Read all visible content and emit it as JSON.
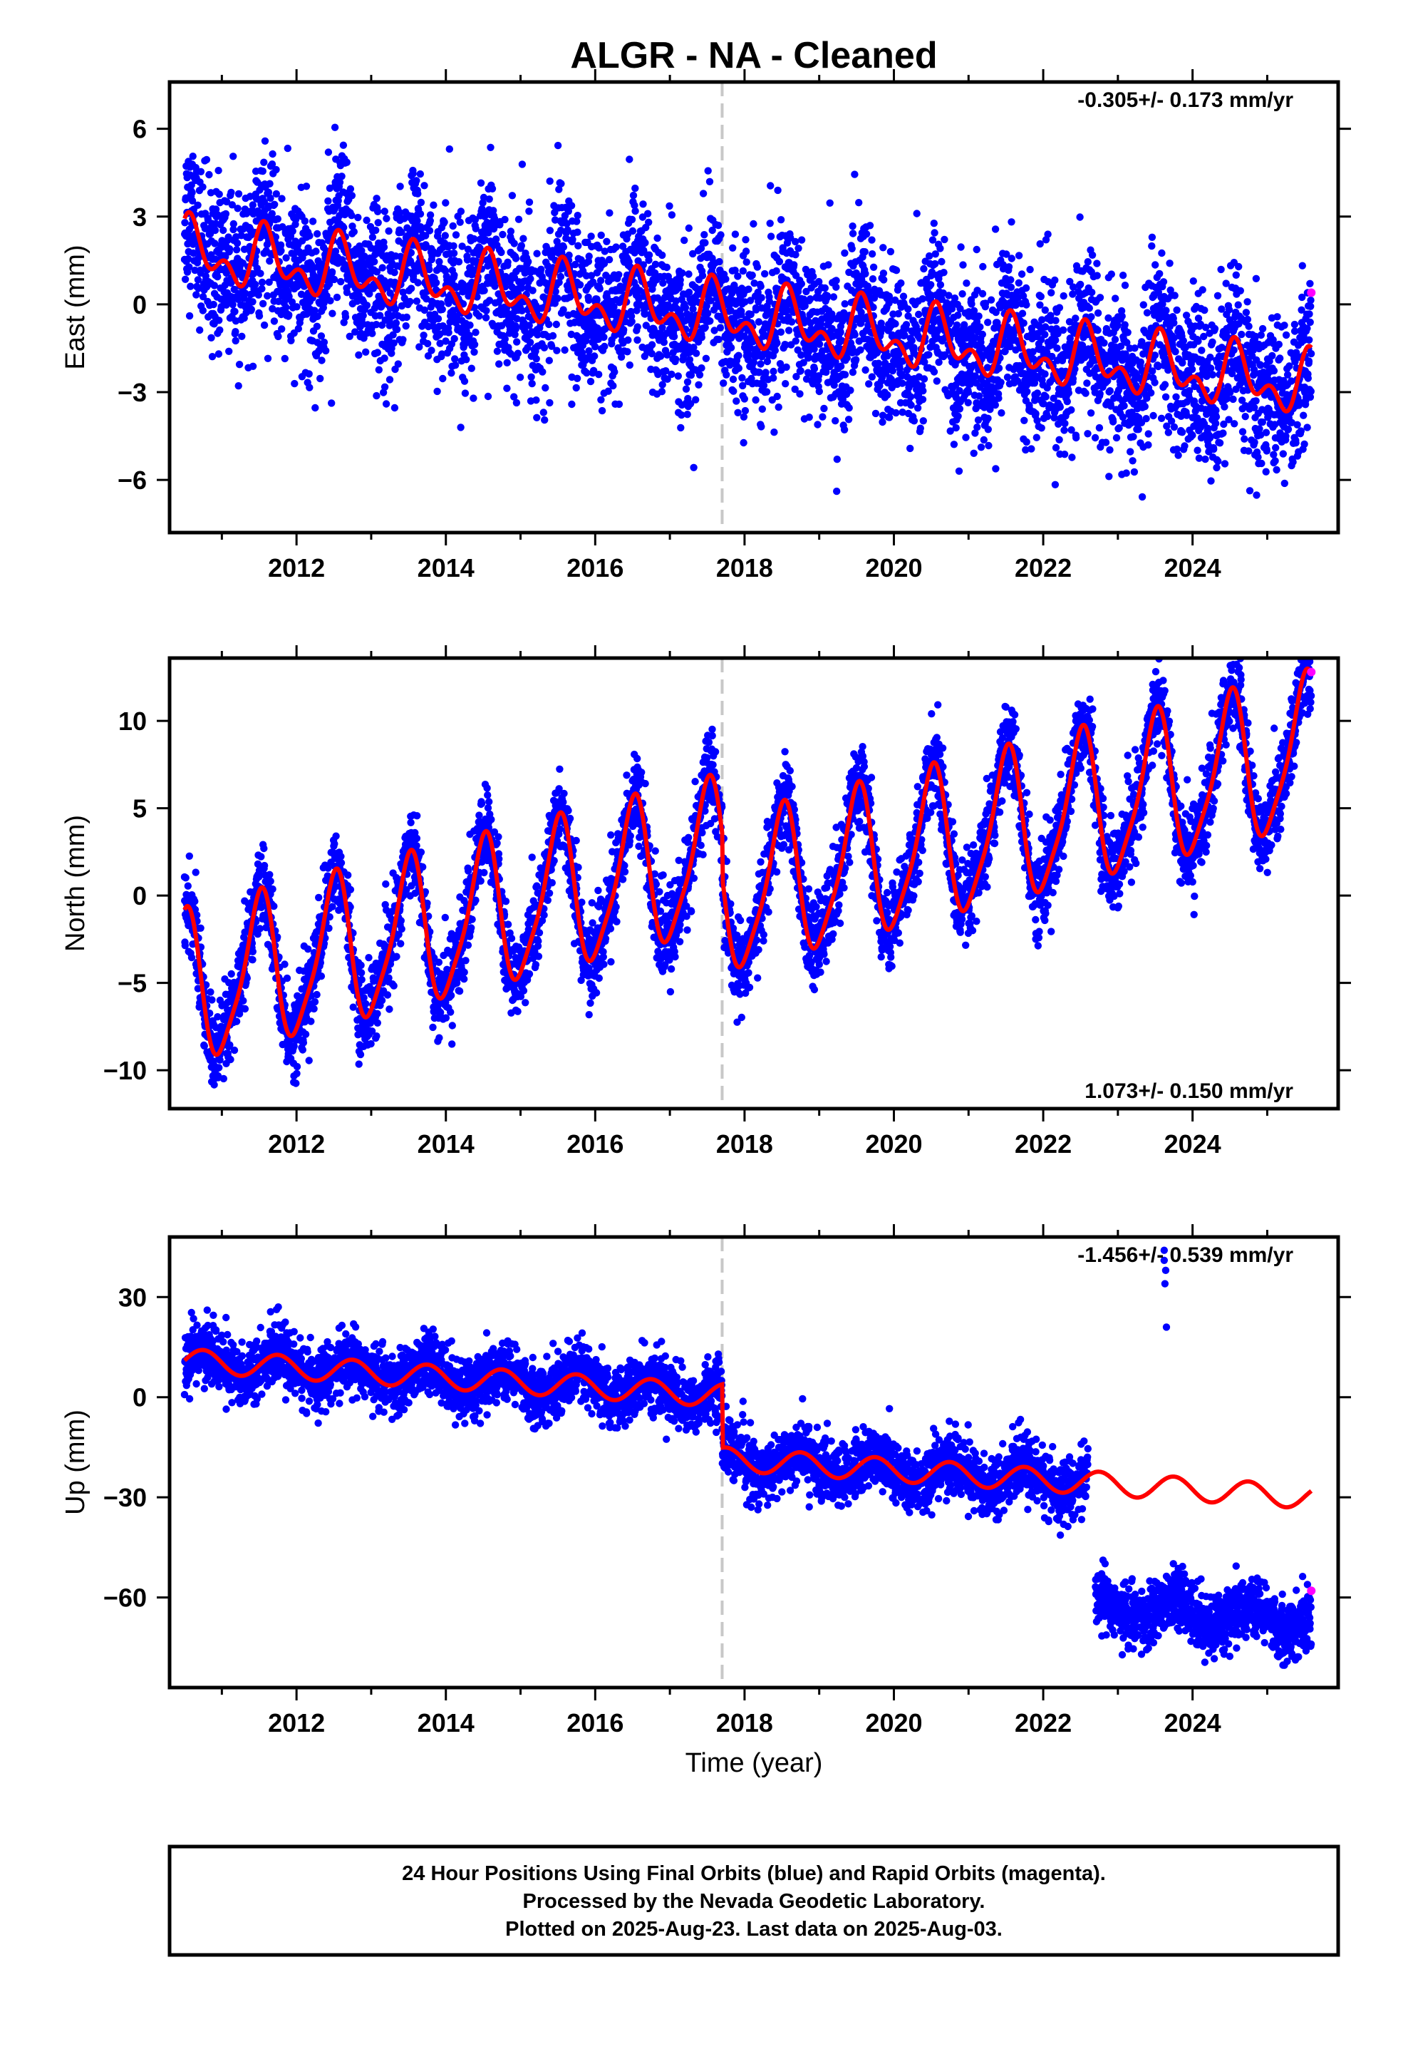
{
  "figure": {
    "title": "ALGR  - NA - Cleaned",
    "xlabel": "Time (year)",
    "footer": [
      "24 Hour Positions Using Final Orbits (blue) and Rapid Orbits (magenta).",
      "Processed by the Nevada Geodetic Laboratory.",
      "Plotted on 2025-Aug-23. Last data on 2025-Aug-03."
    ],
    "colors": {
      "final_orbits": "#0000ff",
      "rapid_orbits": "#ff00ff",
      "model": "#ff0000",
      "offset_line": "#c8c8c8"
    }
  },
  "chart_data": [
    {
      "type": "scatter",
      "component": "East",
      "ylabel": "East (mm)",
      "rate_label": "-0.305+/- 0.173 mm/yr",
      "xlim": [
        2010.3,
        2025.95
      ],
      "ylim": [
        -7.8,
        7.6
      ],
      "xticks": [
        2012,
        2014,
        2016,
        2018,
        2020,
        2022,
        2024
      ],
      "yticks": [
        -6,
        -3,
        0,
        3,
        6
      ],
      "ytick_labels": [
        "−6",
        "−3",
        "0",
        "3",
        "6"
      ],
      "offset_epoch": 2017.7,
      "data_start": 2010.5,
      "data_end": 2025.59,
      "model": {
        "trend_mm_per_yr": -0.305,
        "intercept_mm_at_2010_5": 1.8,
        "annual_amplitude_mm": 0.8,
        "annual_phase_peak": 2010.6,
        "semiannual_amplitude_mm": 0.6,
        "semiannual_phase_peak": 2010.55,
        "step_mm_at_offset": 0.0
      },
      "scatter_sd_mm": 1.35,
      "rapid_orbit_points": [
        {
          "x": 2025.59,
          "y": 0.4
        }
      ]
    },
    {
      "type": "scatter",
      "component": "North",
      "ylabel": "North (mm)",
      "rate_label": "1.073+/- 0.150 mm/yr",
      "xlim": [
        2010.3,
        2025.95
      ],
      "ylim": [
        -12.2,
        13.6
      ],
      "xticks": [
        2012,
        2014,
        2016,
        2018,
        2020,
        2022,
        2024
      ],
      "yticks": [
        -10,
        -5,
        0,
        5,
        10
      ],
      "ytick_labels": [
        "−10",
        "−5",
        "0",
        "5",
        "10"
      ],
      "offset_epoch": 2017.7,
      "data_start": 2010.5,
      "data_end": 2025.59,
      "model": {
        "trend_mm_per_yr": 1.073,
        "intercept_mm_at_2010_5": -5.5,
        "annual_amplitude_mm": 4.2,
        "annual_phase_peak": 2010.5,
        "semiannual_amplitude_mm": 0.9,
        "semiannual_phase_peak": 2010.58,
        "step_mm_at_offset": -2.5
      },
      "scatter_sd_mm": 1.2,
      "rapid_orbit_points": [
        {
          "x": 2025.59,
          "y": 12.8
        }
      ]
    },
    {
      "type": "scatter",
      "component": "Up",
      "ylabel": "Up (mm)",
      "rate_label": "-1.456+/- 0.539 mm/yr",
      "xlim": [
        2010.3,
        2025.95
      ],
      "ylim": [
        -87,
        48
      ],
      "xticks": [
        2012,
        2014,
        2016,
        2018,
        2020,
        2022,
        2024
      ],
      "yticks": [
        -60,
        -30,
        0,
        30
      ],
      "ytick_labels": [
        "−60",
        "−30",
        "0",
        "30"
      ],
      "offset_epoch": 2017.7,
      "data_start": 2010.5,
      "data_end": 2025.59,
      "model": {
        "trend_mm_per_yr": -1.456,
        "intercept_mm_at_2010_5": 11.0,
        "annual_amplitude_mm": 3.5,
        "annual_phase_peak": 2010.75,
        "semiannual_amplitude_mm": 0.0,
        "semiannual_phase_peak": 2010.75,
        "step_mm_at_offset": -19.0
      },
      "scatter_sd_mm": 4.5,
      "data_segments": [
        {
          "start": 2010.5,
          "end": 2022.6,
          "shift_mm": 0
        },
        {
          "start": 2022.7,
          "end": 2025.59,
          "shift_mm": -37
        }
      ],
      "outlier_points": [
        {
          "x": 2023.62,
          "y": 44
        },
        {
          "x": 2023.62,
          "y": 41
        },
        {
          "x": 2023.64,
          "y": 38
        },
        {
          "x": 2023.63,
          "y": 34
        },
        {
          "x": 2023.65,
          "y": 21
        }
      ],
      "rapid_orbit_points": [
        {
          "x": 2025.59,
          "y": -58
        }
      ]
    }
  ]
}
